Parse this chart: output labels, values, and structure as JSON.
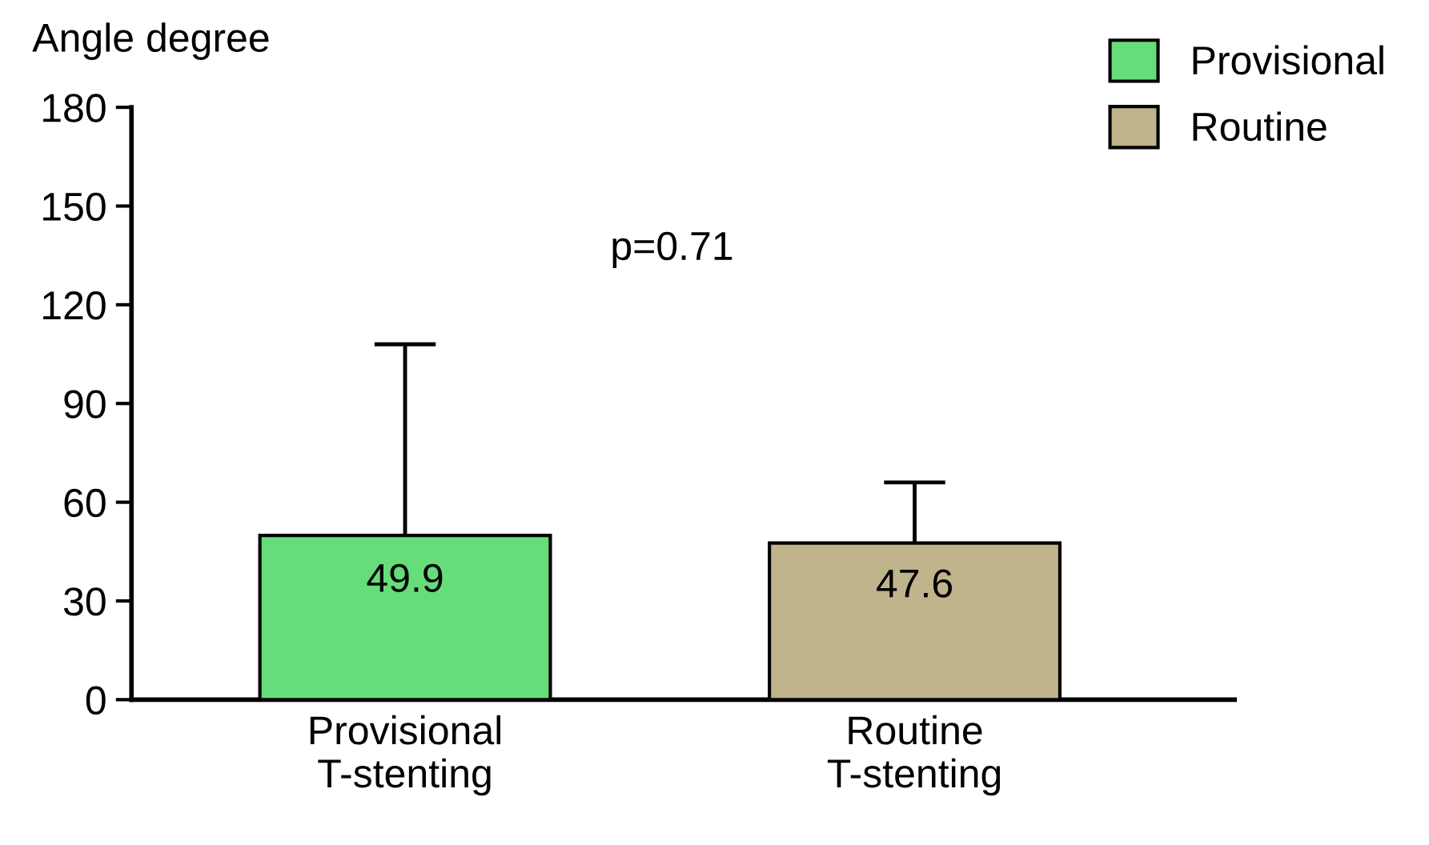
{
  "chart_data": {
    "type": "bar",
    "ylabel": "Angle degree",
    "categories": [
      "Provisional\nT-stenting",
      "Routine\nT-stenting"
    ],
    "series": [
      {
        "name": "Provisional",
        "color": "#66dd7a",
        "values": [
          49.9,
          null
        ],
        "errors": [
          [
            49.9,
            108
          ],
          null
        ]
      },
      {
        "name": "Routine",
        "color": "#c0b48c",
        "values": [
          null,
          47.6
        ],
        "errors": [
          null,
          [
            47.6,
            66
          ]
        ]
      }
    ],
    "ylim": [
      0,
      180
    ],
    "yticks": [
      0,
      30,
      60,
      90,
      120,
      150,
      180
    ],
    "data_labels": true,
    "legend": "top right",
    "grid": false,
    "annotations": [
      "p=0.71"
    ]
  }
}
